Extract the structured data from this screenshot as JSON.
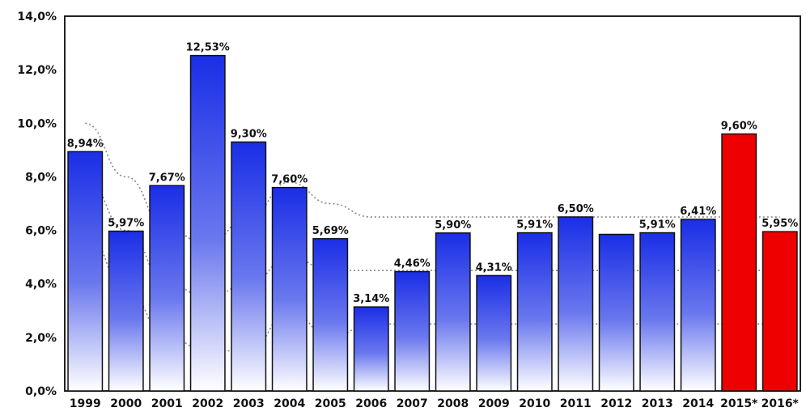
{
  "chart_data": {
    "type": "bar",
    "title": "",
    "xlabel": "",
    "ylabel": "",
    "ylim": [
      0,
      14
    ],
    "y_ticks": [
      "0,0%",
      "2,0%",
      "4,0%",
      "6,0%",
      "8,0%",
      "10,0%",
      "12,0%",
      "14,0%"
    ],
    "grid": false,
    "categories": [
      "1999",
      "2000",
      "2001",
      "2002",
      "2003",
      "2004",
      "2005",
      "2006",
      "2007",
      "2008",
      "2009",
      "2010",
      "2011",
      "2012",
      "2013",
      "2014",
      "2015*",
      "2016*"
    ],
    "values": [
      8.94,
      5.97,
      7.67,
      12.53,
      9.3,
      7.6,
      5.69,
      3.14,
      4.46,
      5.9,
      4.31,
      5.91,
      6.5,
      5.85,
      5.91,
      6.41,
      9.6,
      5.95
    ],
    "data_labels": [
      "8,94%",
      "5,97%",
      "7,67%",
      "12,53%",
      "9,30%",
      "7,60%",
      "5,69%",
      "3,14%",
      "4,46%",
      "5,90%",
      "4,31%",
      "5,91%",
      "6,50%",
      "",
      "5,91%",
      "6,41%",
      "9,60%",
      "5,95%"
    ],
    "bar_colors": [
      "blue",
      "blue",
      "blue",
      "blue",
      "blue",
      "blue",
      "blue",
      "blue",
      "blue",
      "blue",
      "blue",
      "blue",
      "blue",
      "blue",
      "blue",
      "blue",
      "red",
      "red"
    ],
    "colors": {
      "blue_top": "#1a2ee6",
      "blue_bottom": "#ffffff",
      "red": "#ee0000",
      "dotted": "#888888"
    },
    "dotted_bands": [
      {
        "x": [
          0,
          1,
          2,
          3,
          4,
          5,
          6,
          7,
          8,
          9,
          10,
          11,
          12,
          13,
          14,
          15,
          16,
          17
        ],
        "y": [
          10,
          8.0,
          6.0,
          5.5,
          6.5,
          7.8,
          7.0,
          6.5,
          6.5,
          6.5,
          6.5,
          6.5,
          6.5,
          6.5,
          6.5,
          6.5,
          6.5,
          6.5
        ]
      },
      {
        "x": [
          0,
          1,
          2,
          3,
          4,
          5,
          6,
          7,
          8,
          9,
          10,
          11,
          12,
          13,
          14,
          15,
          16,
          17
        ],
        "y": [
          8.0,
          6.0,
          4.0,
          3.5,
          4.0,
          5.0,
          4.5,
          4.5,
          4.5,
          4.5,
          4.5,
          4.5,
          4.5,
          4.5,
          4.5,
          4.5,
          4.5,
          4.5
        ]
      },
      {
        "x": [
          0,
          1,
          2,
          3,
          4,
          5,
          6,
          7,
          8,
          9,
          10,
          11,
          12,
          13,
          14,
          15,
          16,
          17
        ],
        "y": [
          6.0,
          3.8,
          2.0,
          1.5,
          1.5,
          3.0,
          2.0,
          2.5,
          2.5,
          2.5,
          2.5,
          2.5,
          2.5,
          2.5,
          2.5,
          2.5,
          2.5,
          2.5
        ]
      }
    ]
  }
}
